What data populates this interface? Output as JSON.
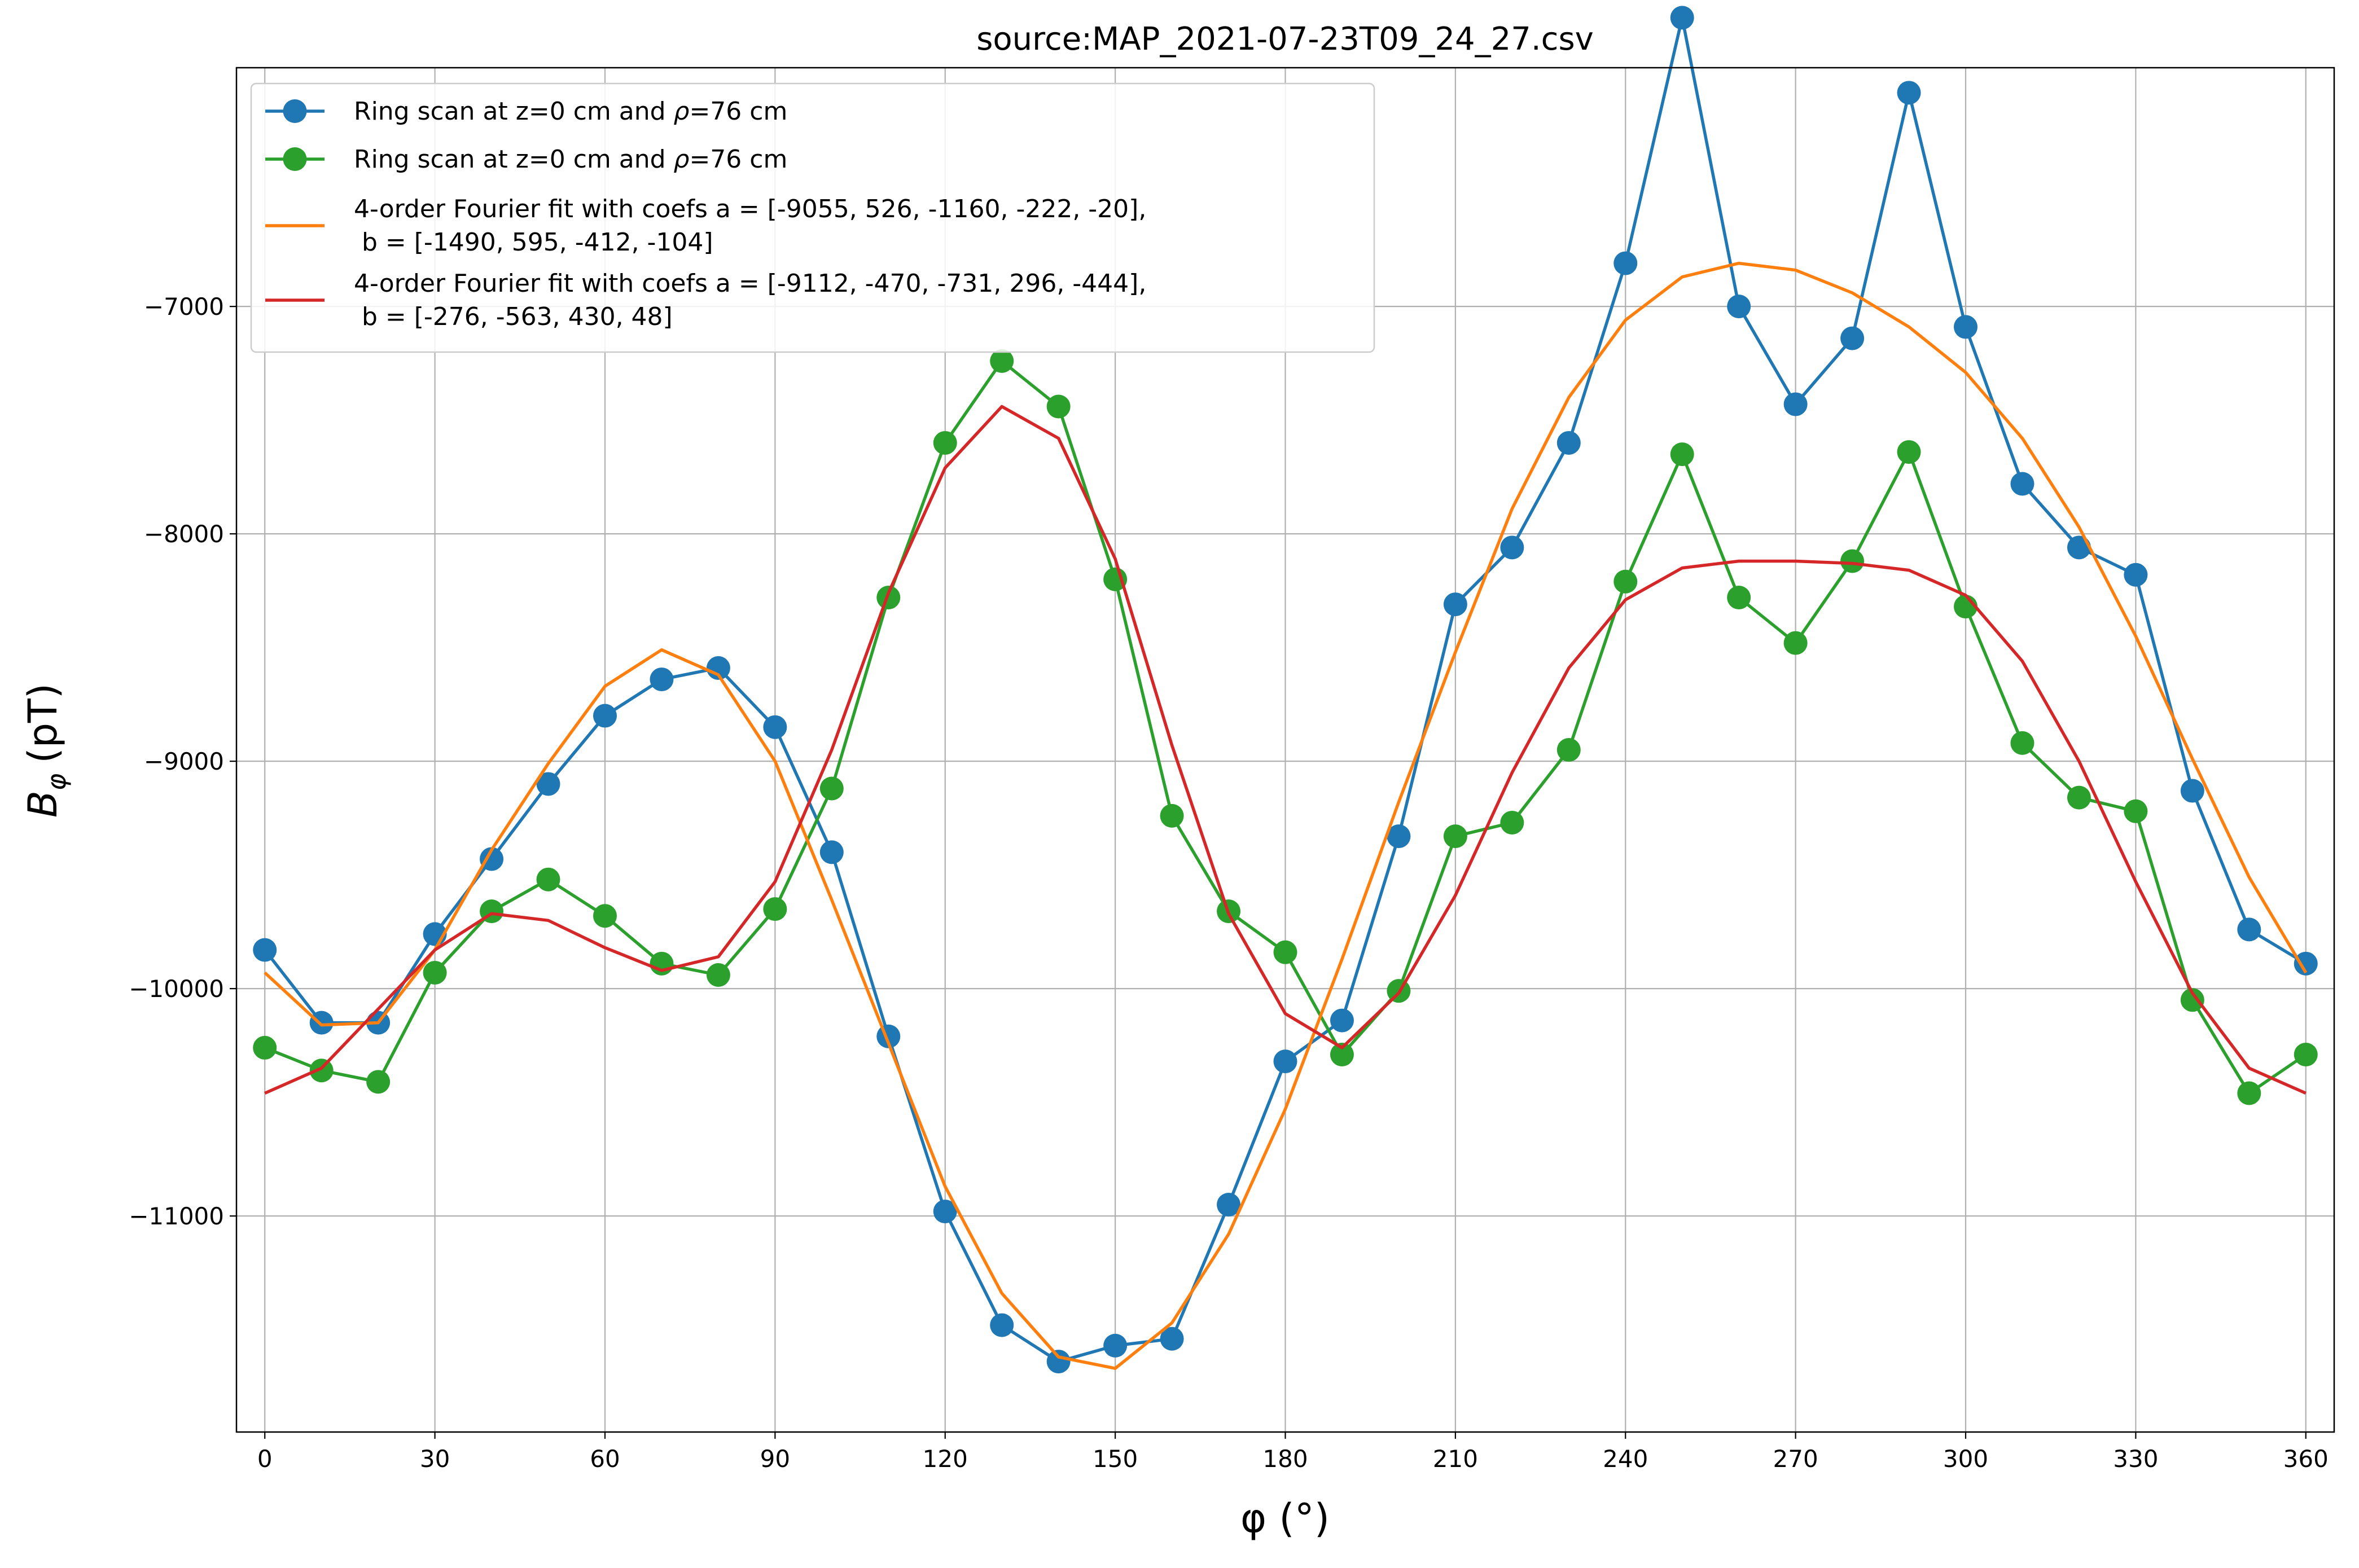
{
  "chart_data": {
    "type": "line",
    "title": "source:MAP_2021-07-23T09_24_27.csv",
    "xlabel": "φ (°)",
    "ylabel_main": "B",
    "ylabel_sub": "φ",
    "ylabel_unit": "(pT)",
    "xlim": [
      -5,
      365
    ],
    "ylim": [
      -11950,
      -5950
    ],
    "grid": true,
    "legend_position": "top-left",
    "x_ticks": [
      0,
      30,
      60,
      90,
      120,
      150,
      180,
      210,
      240,
      270,
      300,
      330,
      360
    ],
    "x_tick_labels": [
      "0",
      "30",
      "60",
      "90",
      "120",
      "150",
      "180",
      "210",
      "240",
      "270",
      "300",
      "330",
      "360"
    ],
    "y_ticks": [
      -11000,
      -10000,
      -9000,
      -8000,
      -7000
    ],
    "y_tick_labels": [
      "−11000",
      "−10000",
      "−9000",
      "−8000",
      "−7000"
    ],
    "x": [
      0,
      10,
      20,
      30,
      40,
      50,
      60,
      70,
      80,
      90,
      100,
      110,
      120,
      130,
      140,
      150,
      160,
      170,
      180,
      190,
      200,
      210,
      220,
      230,
      240,
      250,
      260,
      270,
      280,
      290,
      300,
      310,
      320,
      330,
      340,
      350,
      360
    ],
    "series": [
      {
        "name_text": "Ring scan at z=0 cm and ",
        "name_rho": "ρ",
        "name_tail": "=76 cm",
        "color": "#1f77b4",
        "style": "line-marker",
        "values": [
          -9830,
          -10150,
          -10150,
          -9760,
          -9430,
          -9100,
          -8800,
          -8640,
          -8590,
          -8850,
          -9400,
          -10210,
          -10980,
          -11480,
          -11640,
          -11570,
          -11540,
          -10950,
          -10320,
          -10140,
          -9330,
          -8310,
          -8060,
          -7600,
          -6810,
          -5730,
          -7000,
          -7430,
          -7140,
          -6060,
          -7090,
          -7780,
          -8060,
          -8180,
          -9130,
          -9740,
          -9890
        ]
      },
      {
        "name_text": "Ring scan at z=0 cm and ",
        "name_rho": "ρ",
        "name_tail": "=76 cm",
        "color": "#2ca02c",
        "style": "line-marker",
        "values": [
          -10260,
          -10360,
          -10410,
          -9930,
          -9660,
          -9520,
          -9680,
          -9890,
          -9940,
          -9650,
          -9120,
          -8280,
          -7600,
          -7240,
          -7440,
          -8200,
          -9240,
          -9660,
          -9840,
          -10290,
          -10010,
          -9330,
          -9270,
          -8950,
          -8210,
          -7650,
          -8280,
          -8480,
          -8120,
          -7640,
          -8320,
          -8920,
          -9160,
          -9220,
          -10050,
          -10460,
          -10290
        ]
      },
      {
        "name": "4-order Fourier fit with coefs a = [-9055, 526, -1160, -222, -20],",
        "name_line2": " b = [-1490, 595, -412, -104]",
        "color": "#ff7f0e",
        "style": "line",
        "values": [
          -9930,
          -10160,
          -10150,
          -9830,
          -9390,
          -9010,
          -8670,
          -8510,
          -8620,
          -9000,
          -9610,
          -10240,
          -10870,
          -11340,
          -11620,
          -11670,
          -11470,
          -11080,
          -10530,
          -9870,
          -9180,
          -8520,
          -7890,
          -7400,
          -7060,
          -6870,
          -6810,
          -6840,
          -6940,
          -7090,
          -7290,
          -7580,
          -7970,
          -8450,
          -8990,
          -9510,
          -9930
        ]
      },
      {
        "name": "4-order Fourier fit with coefs a = [-9112, -470, -731, 296, -444],",
        "name_line2": " b = [-276, -563, 430, 48]",
        "color": "#d62728",
        "style": "line",
        "values": [
          -10460,
          -10350,
          -10090,
          -9830,
          -9670,
          -9700,
          -9820,
          -9920,
          -9860,
          -9530,
          -8950,
          -8260,
          -7710,
          -7440,
          -7580,
          -8110,
          -8930,
          -9670,
          -10110,
          -10260,
          -10020,
          -9590,
          -9050,
          -8590,
          -8290,
          -8150,
          -8120,
          -8120,
          -8130,
          -8160,
          -8270,
          -8560,
          -9000,
          -9530,
          -10020,
          -10350,
          -10460
        ]
      }
    ]
  }
}
